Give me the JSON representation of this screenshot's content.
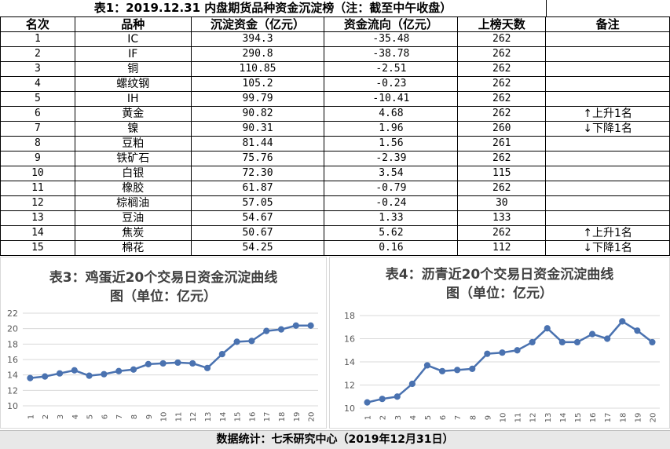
{
  "table": {
    "title": "表1：2019.12.31 内盘期货品种资金沉淀榜（注：截至中午收盘）",
    "headers": [
      "名次",
      "品种",
      "沉淀资金（亿元）",
      "资金流向（亿元）",
      "上榜天数",
      "备注"
    ],
    "rows": [
      {
        "rank": "1",
        "name": "IC",
        "deposit": "394.3",
        "flow": "-35.48",
        "days": "262",
        "note": ""
      },
      {
        "rank": "2",
        "name": "IF",
        "deposit": "290.8",
        "flow": "-38.78",
        "days": "262",
        "note": ""
      },
      {
        "rank": "3",
        "name": "铜",
        "deposit": "110.85",
        "flow": "-2.51",
        "days": "262",
        "note": ""
      },
      {
        "rank": "4",
        "name": "螺纹钢",
        "deposit": "105.2",
        "flow": "-0.23",
        "days": "262",
        "note": ""
      },
      {
        "rank": "5",
        "name": "IH",
        "deposit": "99.79",
        "flow": "-10.41",
        "days": "262",
        "note": ""
      },
      {
        "rank": "6",
        "name": "黄金",
        "deposit": "90.82",
        "flow": "4.68",
        "days": "262",
        "note": "上升1名",
        "arrow": "↑"
      },
      {
        "rank": "7",
        "name": "镍",
        "deposit": "90.31",
        "flow": "1.96",
        "days": "260",
        "note": "下降1名",
        "arrow": "↓"
      },
      {
        "rank": "8",
        "name": "豆粕",
        "deposit": "81.44",
        "flow": "1.56",
        "days": "261",
        "note": ""
      },
      {
        "rank": "9",
        "name": "铁矿石",
        "deposit": "75.76",
        "flow": "-2.39",
        "days": "262",
        "note": ""
      },
      {
        "rank": "10",
        "name": "白银",
        "deposit": "72.30",
        "flow": "3.54",
        "days": "115",
        "note": ""
      },
      {
        "rank": "11",
        "name": "橡胶",
        "deposit": "61.87",
        "flow": "-0.79",
        "days": "262",
        "note": ""
      },
      {
        "rank": "12",
        "name": "棕榈油",
        "deposit": "57.05",
        "flow": "-0.24",
        "days": "30",
        "note": ""
      },
      {
        "rank": "13",
        "name": "豆油",
        "deposit": "54.67",
        "flow": "1.33",
        "days": "133",
        "note": ""
      },
      {
        "rank": "14",
        "name": "焦炭",
        "deposit": "50.67",
        "flow": "5.62",
        "days": "262",
        "note": "上升1名",
        "arrow": "↑"
      },
      {
        "rank": "15",
        "name": "棉花",
        "deposit": "54.25",
        "flow": "0.16",
        "days": "112",
        "note": "下降1名",
        "arrow": "↓"
      }
    ]
  },
  "footer": "数据统计：七禾研究中心（2019年12月31日）",
  "chart_data": [
    {
      "type": "line",
      "title_line1": "表3：鸡蛋近20个交易日资金沉淀曲线",
      "title_line2": "图（单位：亿元）",
      "categories": [
        "1",
        "2",
        "3",
        "4",
        "5",
        "6",
        "7",
        "8",
        "9",
        "10",
        "11",
        "12",
        "13",
        "14",
        "15",
        "16",
        "17",
        "18",
        "19",
        "20"
      ],
      "values": [
        13.6,
        13.8,
        14.2,
        14.6,
        13.9,
        14.1,
        14.5,
        14.7,
        15.4,
        15.5,
        15.6,
        15.5,
        14.9,
        16.7,
        18.3,
        18.4,
        19.7,
        19.9,
        20.4,
        20.4
      ],
      "ylim": [
        10,
        22
      ],
      "yticks": [
        "10",
        "12",
        "14",
        "16",
        "18",
        "20",
        "22"
      ],
      "ytick_values": [
        10,
        12,
        14,
        16,
        18,
        20,
        22
      ],
      "grid": true,
      "color": "#4a72b0"
    },
    {
      "type": "line",
      "title_line1": "表4：沥青近20个交易日资金沉淀曲线",
      "title_line2": "图（单位：亿元）",
      "categories": [
        "1",
        "2",
        "3",
        "4",
        "5",
        "6",
        "7",
        "8",
        "9",
        "10",
        "11",
        "12",
        "13",
        "14",
        "15",
        "16",
        "17",
        "18",
        "19",
        "20"
      ],
      "values": [
        10.5,
        10.8,
        11.0,
        12.1,
        13.7,
        13.2,
        13.3,
        13.4,
        14.7,
        14.8,
        15.0,
        15.7,
        16.9,
        15.7,
        15.7,
        16.4,
        16.0,
        17.5,
        16.7,
        15.7
      ],
      "ylim": [
        10,
        18
      ],
      "yticks": [
        "10",
        "12",
        "14",
        "16",
        "18"
      ],
      "ytick_values": [
        10,
        12,
        14,
        16,
        18
      ],
      "grid": true,
      "color": "#4a72b0"
    }
  ]
}
